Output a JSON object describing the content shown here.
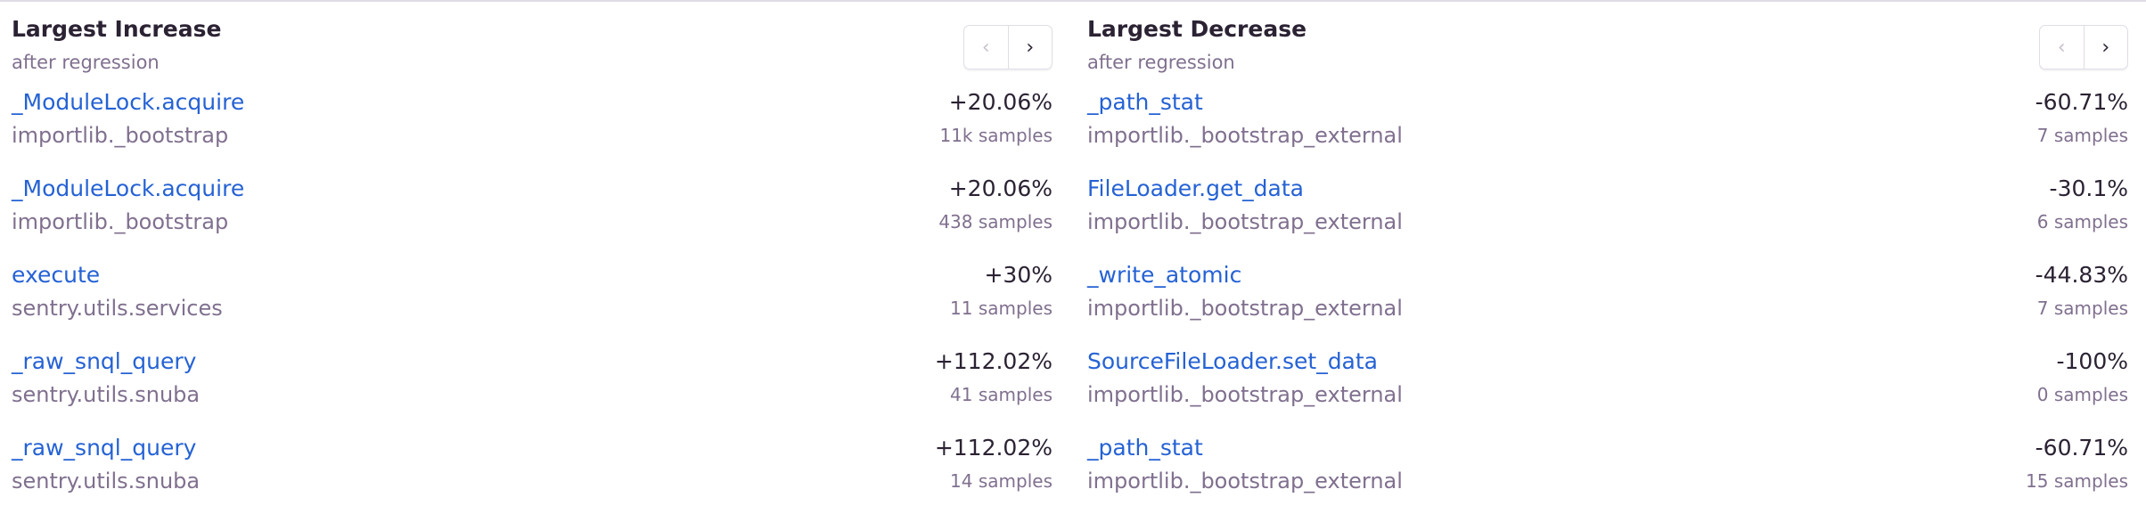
{
  "increase": {
    "title": "Largest Increase",
    "subtitle": "after regression",
    "nav": {
      "prev_icon": "chevron-left-icon",
      "next_icon": "chevron-right-icon",
      "prev": "‹",
      "next": "›"
    },
    "rows": [
      {
        "function": "_ModuleLock.acquire",
        "module": "importlib._bootstrap",
        "change": "+20.06%",
        "samples": "11k samples"
      },
      {
        "function": "_ModuleLock.acquire",
        "module": "importlib._bootstrap",
        "change": "+20.06%",
        "samples": "438 samples"
      },
      {
        "function": "execute",
        "module": "sentry.utils.services",
        "change": "+30%",
        "samples": "11 samples"
      },
      {
        "function": "_raw_snql_query",
        "module": "sentry.utils.snuba",
        "change": "+112.02%",
        "samples": "41 samples"
      },
      {
        "function": "_raw_snql_query",
        "module": "sentry.utils.snuba",
        "change": "+112.02%",
        "samples": "14 samples"
      }
    ]
  },
  "decrease": {
    "title": "Largest Decrease",
    "subtitle": "after regression",
    "nav": {
      "prev_icon": "chevron-left-icon",
      "next_icon": "chevron-right-icon",
      "prev": "‹",
      "next": "›"
    },
    "rows": [
      {
        "function": "_path_stat",
        "module": "importlib._bootstrap_external",
        "change": "-60.71%",
        "samples": "7 samples"
      },
      {
        "function": "FileLoader.get_data",
        "module": "importlib._bootstrap_external",
        "change": "-30.1%",
        "samples": "6 samples"
      },
      {
        "function": "_write_atomic",
        "module": "importlib._bootstrap_external",
        "change": "-44.83%",
        "samples": "7 samples"
      },
      {
        "function": "SourceFileLoader.set_data",
        "module": "importlib._bootstrap_external",
        "change": "-100%",
        "samples": "0 samples"
      },
      {
        "function": "_path_stat",
        "module": "importlib._bootstrap_external",
        "change": "-60.71%",
        "samples": "15 samples"
      }
    ]
  },
  "colors": {
    "link": "#2562d4",
    "text": "#2b2233",
    "muted": "#80708f",
    "border": "#e0dce5"
  }
}
